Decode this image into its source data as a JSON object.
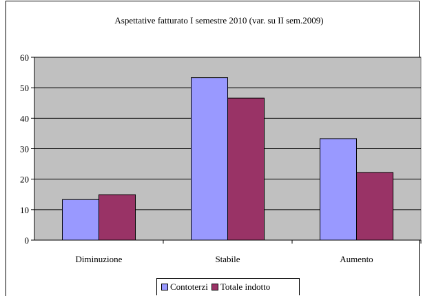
{
  "chart_data": {
    "type": "bar",
    "title": "Aspettative fatturato I semestre 2010 (var. su II sem.2009)",
    "categories": [
      "Diminuzione",
      "Stabile",
      "Aumento"
    ],
    "series": [
      {
        "name": "Contoterzi",
        "values": [
          13.3,
          53.3,
          33.3
        ],
        "color": "#9999ff"
      },
      {
        "name": "Totale indotto",
        "values": [
          14.9,
          46.6,
          22.2
        ],
        "color": "#993366"
      }
    ],
    "ylim": [
      0,
      60
    ],
    "yticks": [
      0,
      10,
      20,
      30,
      40,
      50,
      60
    ],
    "grid": true,
    "plot_background": "#c0c0c0",
    "legend_position": "bottom"
  }
}
